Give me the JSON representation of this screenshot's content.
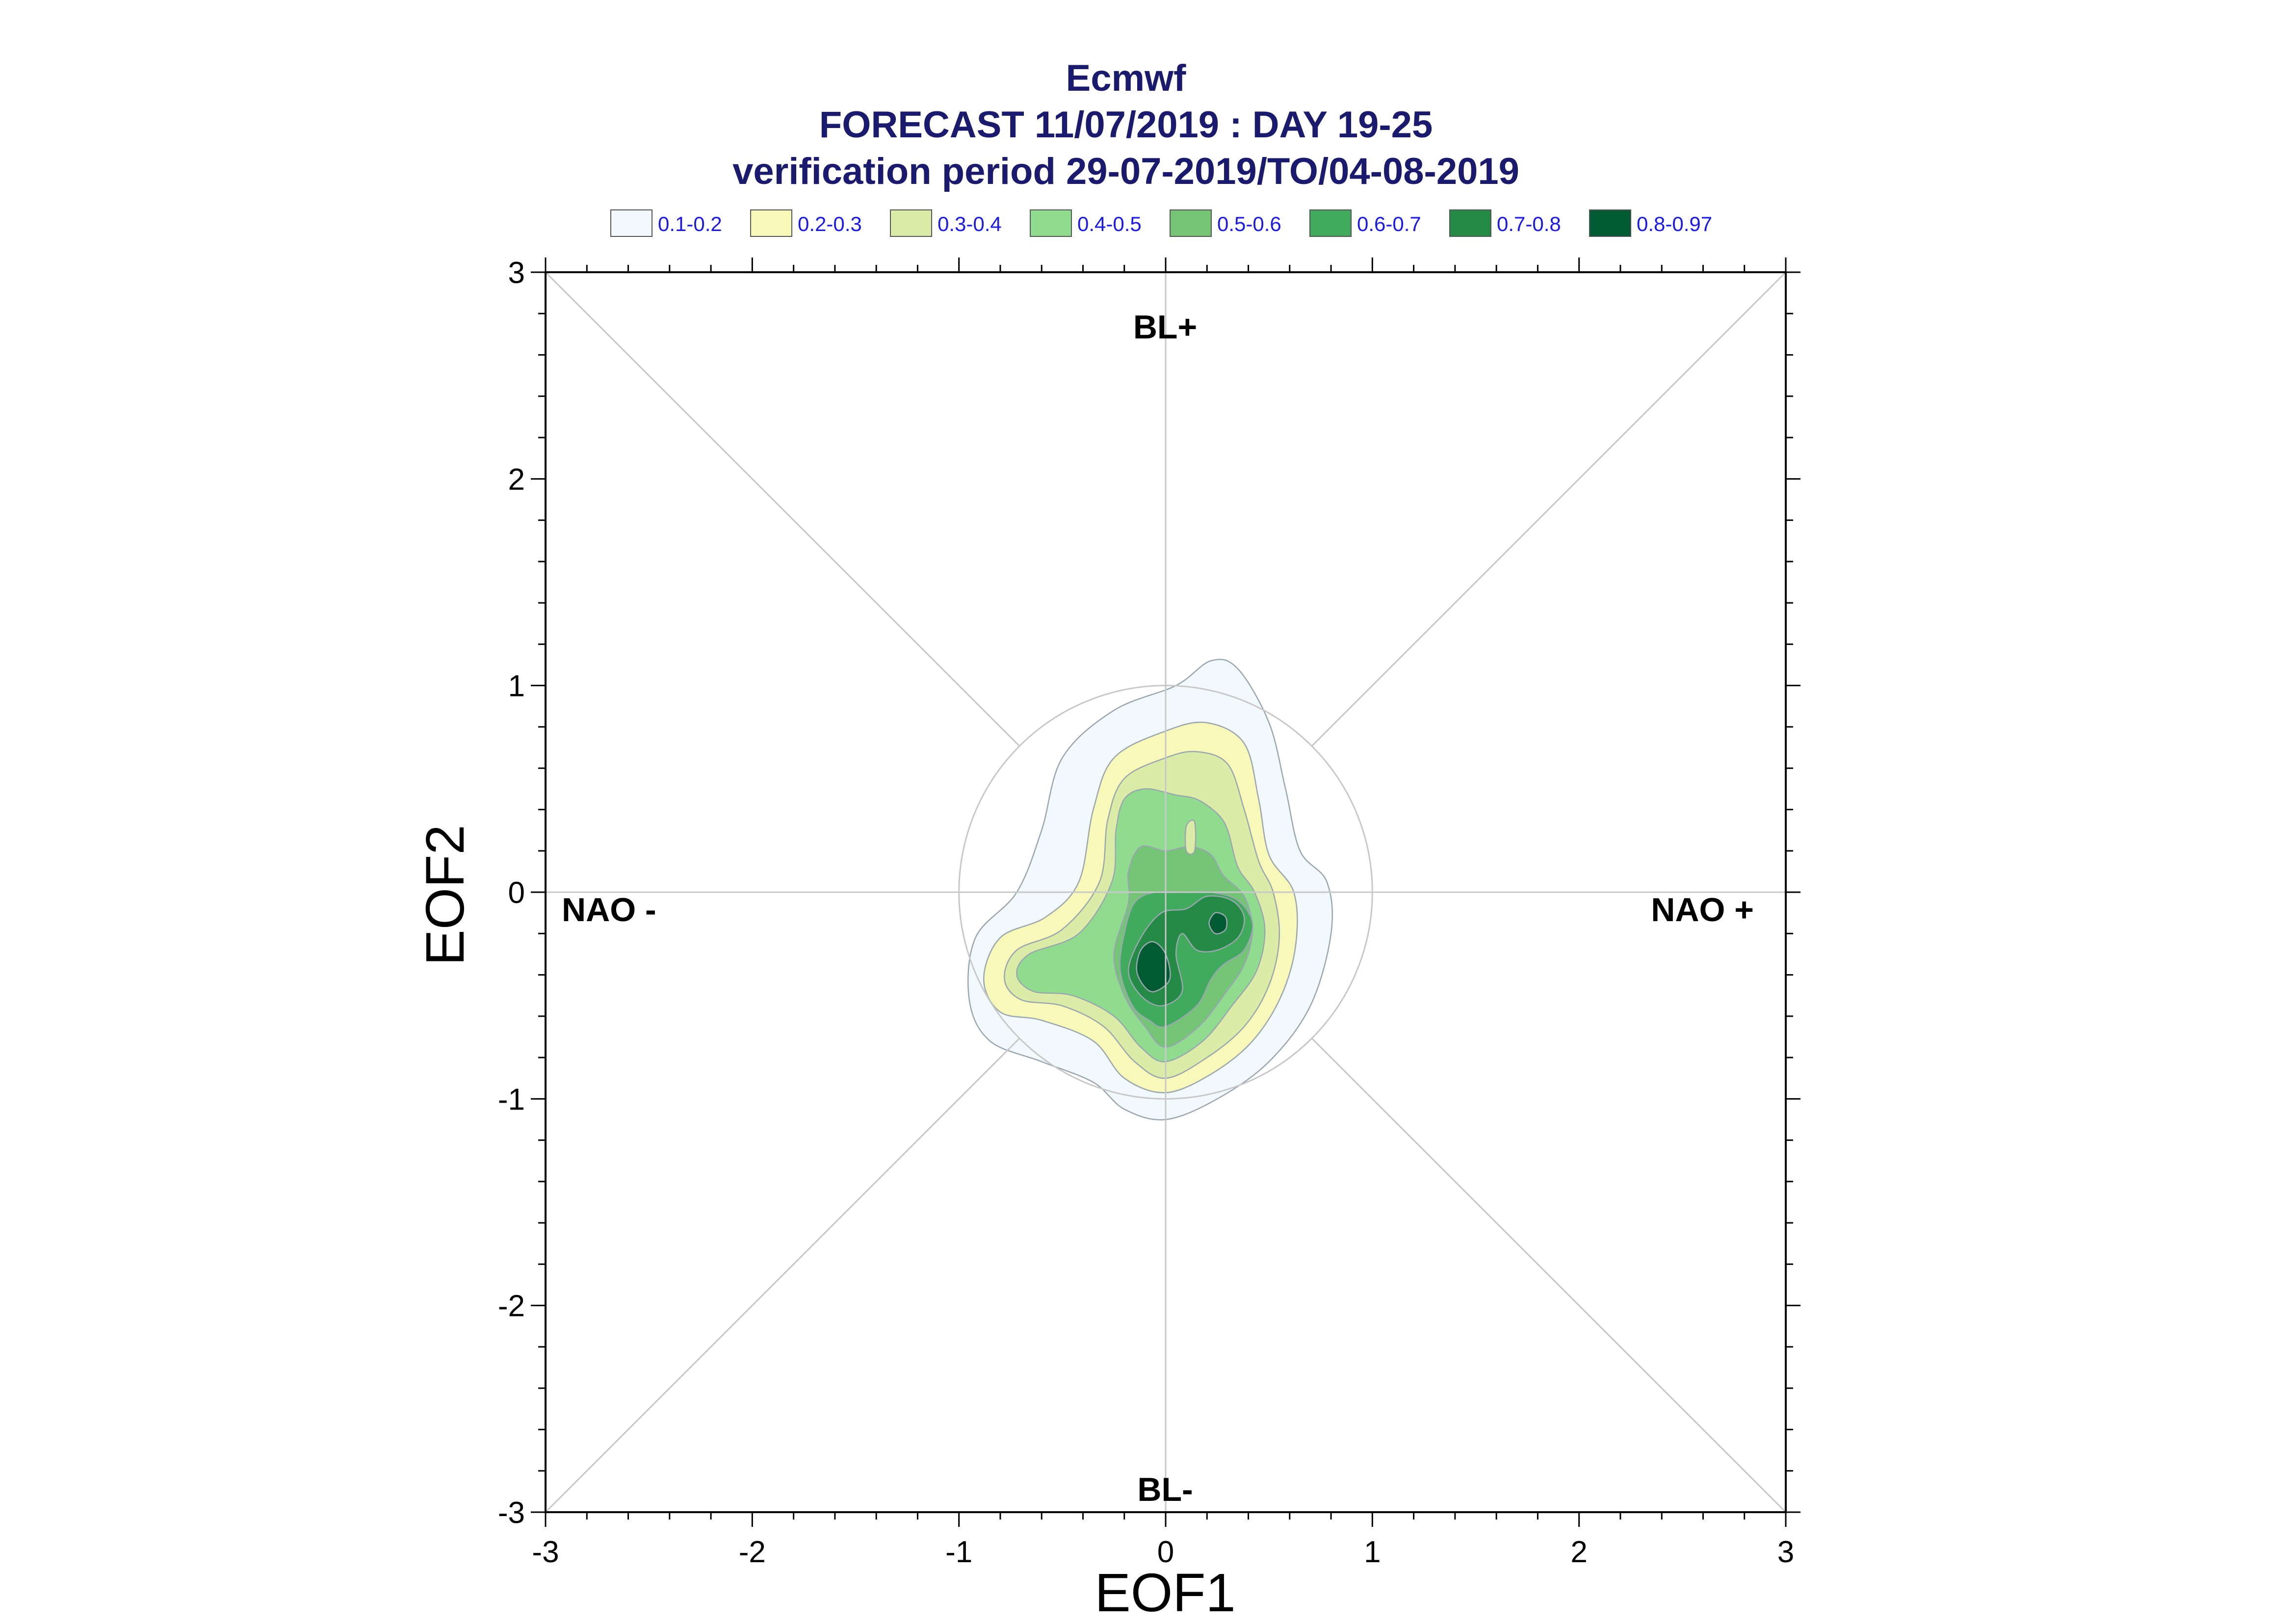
{
  "chart_data": {
    "type": "contour",
    "title_lines": [
      "Ecmwf",
      "FORECAST 11/07/2019 : DAY 19-25",
      "verification period 29-07-2019/TO/04-08-2019"
    ],
    "xlabel": "EOF1",
    "ylabel": "EOF2",
    "xlim": [
      -3,
      3
    ],
    "ylim": [
      -3,
      3
    ],
    "x_ticks": [
      -3,
      -2,
      -1,
      0,
      1,
      2,
      3
    ],
    "y_ticks": [
      -3,
      -2,
      -1,
      0,
      1,
      2,
      3
    ],
    "x_tick_labels": [
      "-3",
      "-2",
      "-1",
      "0",
      "1",
      "2",
      "3"
    ],
    "y_tick_labels": [
      "-3",
      "-2",
      "-1",
      "0",
      "1",
      "2",
      "3"
    ],
    "grid": false,
    "legend_position": "top",
    "legend": [
      {
        "label": "0.1-0.2",
        "color": "#f2f9fc"
      },
      {
        "label": "0.2-0.3",
        "color": "#f8f9b9"
      },
      {
        "label": "0.3-0.4",
        "color": "#daeca6"
      },
      {
        "label": "0.4-0.5",
        "color": "#8fdc8e"
      },
      {
        "label": "0.5-0.6",
        "color": "#74c476"
      },
      {
        "label": "0.6-0.7",
        "color": "#41ab5d"
      },
      {
        "label": "0.7-0.8",
        "color": "#238b45"
      },
      {
        "label": "0.8-0.97",
        "color": "#005a32"
      }
    ],
    "region_labels": {
      "top": "BL+",
      "bottom": "BL-",
      "left": "NAO -",
      "right": "NAO +"
    },
    "reference_circle_radius": 1,
    "contours": [
      {
        "level": "0.1-0.2",
        "points": [
          [
            0.0,
            -1.1
          ],
          [
            0.25,
            -1.0
          ],
          [
            0.5,
            -0.82
          ],
          [
            0.7,
            -0.55
          ],
          [
            0.8,
            -0.2
          ],
          [
            0.78,
            0.05
          ],
          [
            0.65,
            0.2
          ],
          [
            0.58,
            0.5
          ],
          [
            0.5,
            0.82
          ],
          [
            0.35,
            1.08
          ],
          [
            0.22,
            1.12
          ],
          [
            0.05,
            1.0
          ],
          [
            -0.25,
            0.88
          ],
          [
            -0.5,
            0.65
          ],
          [
            -0.6,
            0.3
          ],
          [
            -0.72,
            0.0
          ],
          [
            -0.92,
            -0.22
          ],
          [
            -0.95,
            -0.52
          ],
          [
            -0.85,
            -0.72
          ],
          [
            -0.6,
            -0.82
          ],
          [
            -0.35,
            -0.92
          ],
          [
            -0.2,
            -1.05
          ]
        ]
      },
      {
        "level": "0.2-0.3",
        "points": [
          [
            0.0,
            -0.97
          ],
          [
            0.22,
            -0.88
          ],
          [
            0.42,
            -0.72
          ],
          [
            0.56,
            -0.5
          ],
          [
            0.63,
            -0.25
          ],
          [
            0.62,
            0.0
          ],
          [
            0.5,
            0.18
          ],
          [
            0.45,
            0.45
          ],
          [
            0.38,
            0.72
          ],
          [
            0.2,
            0.82
          ],
          [
            0.0,
            0.78
          ],
          [
            -0.25,
            0.65
          ],
          [
            -0.35,
            0.4
          ],
          [
            -0.42,
            0.05
          ],
          [
            -0.58,
            -0.12
          ],
          [
            -0.8,
            -0.22
          ],
          [
            -0.88,
            -0.42
          ],
          [
            -0.8,
            -0.58
          ],
          [
            -0.6,
            -0.62
          ],
          [
            -0.35,
            -0.72
          ],
          [
            -0.2,
            -0.9
          ]
        ]
      },
      {
        "level": "0.3-0.4",
        "points": [
          [
            0.0,
            -0.9
          ],
          [
            0.2,
            -0.8
          ],
          [
            0.38,
            -0.65
          ],
          [
            0.5,
            -0.45
          ],
          [
            0.55,
            -0.22
          ],
          [
            0.52,
            0.0
          ],
          [
            0.45,
            0.15
          ],
          [
            0.38,
            0.4
          ],
          [
            0.3,
            0.62
          ],
          [
            0.15,
            0.68
          ],
          [
            0.0,
            0.65
          ],
          [
            -0.2,
            0.55
          ],
          [
            -0.28,
            0.35
          ],
          [
            -0.32,
            0.05
          ],
          [
            -0.5,
            -0.18
          ],
          [
            -0.72,
            -0.28
          ],
          [
            -0.78,
            -0.42
          ],
          [
            -0.7,
            -0.52
          ],
          [
            -0.5,
            -0.55
          ],
          [
            -0.3,
            -0.65
          ],
          [
            -0.15,
            -0.82
          ]
        ]
      },
      {
        "level": "0.4-0.5",
        "points": [
          [
            0.0,
            -0.82
          ],
          [
            0.18,
            -0.72
          ],
          [
            0.32,
            -0.55
          ],
          [
            0.44,
            -0.38
          ],
          [
            0.48,
            -0.18
          ],
          [
            0.43,
            0.0
          ],
          [
            0.35,
            0.12
          ],
          [
            0.3,
            0.3
          ],
          [
            0.25,
            0.38
          ],
          [
            0.15,
            0.45
          ],
          [
            0.05,
            0.47
          ],
          [
            -0.1,
            0.5
          ],
          [
            -0.2,
            0.45
          ],
          [
            -0.24,
            0.3
          ],
          [
            -0.26,
            0.05
          ],
          [
            -0.42,
            -0.2
          ],
          [
            -0.66,
            -0.3
          ],
          [
            -0.72,
            -0.4
          ],
          [
            -0.64,
            -0.48
          ],
          [
            -0.45,
            -0.5
          ],
          [
            -0.25,
            -0.6
          ],
          [
            -0.12,
            -0.75
          ]
        ]
      },
      {
        "level": "0.5-0.6",
        "points": [
          [
            0.0,
            -0.75
          ],
          [
            0.16,
            -0.65
          ],
          [
            0.28,
            -0.5
          ],
          [
            0.38,
            -0.35
          ],
          [
            0.42,
            -0.18
          ],
          [
            0.38,
            -0.02
          ],
          [
            0.28,
            0.08
          ],
          [
            0.22,
            0.18
          ],
          [
            0.12,
            0.22
          ],
          [
            0.0,
            0.2
          ],
          [
            -0.12,
            0.22
          ],
          [
            -0.18,
            0.1
          ],
          [
            -0.18,
            -0.05
          ],
          [
            -0.25,
            -0.3
          ],
          [
            -0.2,
            -0.5
          ],
          [
            -0.1,
            -0.65
          ]
        ]
      },
      {
        "level": "0.6-0.7",
        "points": [
          [
            0.0,
            -0.65
          ],
          [
            0.15,
            -0.55
          ],
          [
            0.22,
            -0.42
          ],
          [
            0.28,
            -0.35
          ],
          [
            0.38,
            -0.28
          ],
          [
            0.42,
            -0.15
          ],
          [
            0.35,
            -0.04
          ],
          [
            0.22,
            0.0
          ],
          [
            0.1,
            0.0
          ],
          [
            -0.05,
            0.0
          ],
          [
            -0.15,
            -0.05
          ],
          [
            -0.2,
            -0.2
          ],
          [
            -0.22,
            -0.38
          ],
          [
            -0.16,
            -0.55
          ],
          [
            -0.08,
            -0.62
          ]
        ]
      },
      {
        "level": "0.7-0.8",
        "points": [
          [
            -0.02,
            -0.55
          ],
          [
            0.08,
            -0.48
          ],
          [
            0.05,
            -0.3
          ],
          [
            0.08,
            -0.2
          ],
          [
            0.15,
            -0.28
          ],
          [
            0.25,
            -0.28
          ],
          [
            0.35,
            -0.22
          ],
          [
            0.38,
            -0.12
          ],
          [
            0.32,
            -0.04
          ],
          [
            0.2,
            -0.02
          ],
          [
            0.1,
            -0.08
          ],
          [
            -0.02,
            -0.1
          ],
          [
            -0.12,
            -0.22
          ],
          [
            -0.18,
            -0.38
          ],
          [
            -0.12,
            -0.5
          ]
        ]
      },
      {
        "level": "0.8-0.97",
        "points": [
          [
            -0.05,
            -0.48
          ],
          [
            0.02,
            -0.42
          ],
          [
            0.0,
            -0.3
          ],
          [
            -0.06,
            -0.24
          ],
          [
            -0.12,
            -0.28
          ],
          [
            -0.14,
            -0.38
          ],
          [
            -0.1,
            -0.46
          ]
        ]
      },
      {
        "level": "0.8-0.97",
        "points": [
          [
            0.24,
            -0.2
          ],
          [
            0.29,
            -0.18
          ],
          [
            0.29,
            -0.12
          ],
          [
            0.24,
            -0.1
          ],
          [
            0.21,
            -0.15
          ]
        ]
      }
    ],
    "holes": [
      {
        "level": "0.3-0.4",
        "points": [
          [
            0.1,
            0.32
          ],
          [
            0.14,
            0.34
          ],
          [
            0.14,
            0.2
          ],
          [
            0.1,
            0.2
          ]
        ]
      }
    ]
  }
}
